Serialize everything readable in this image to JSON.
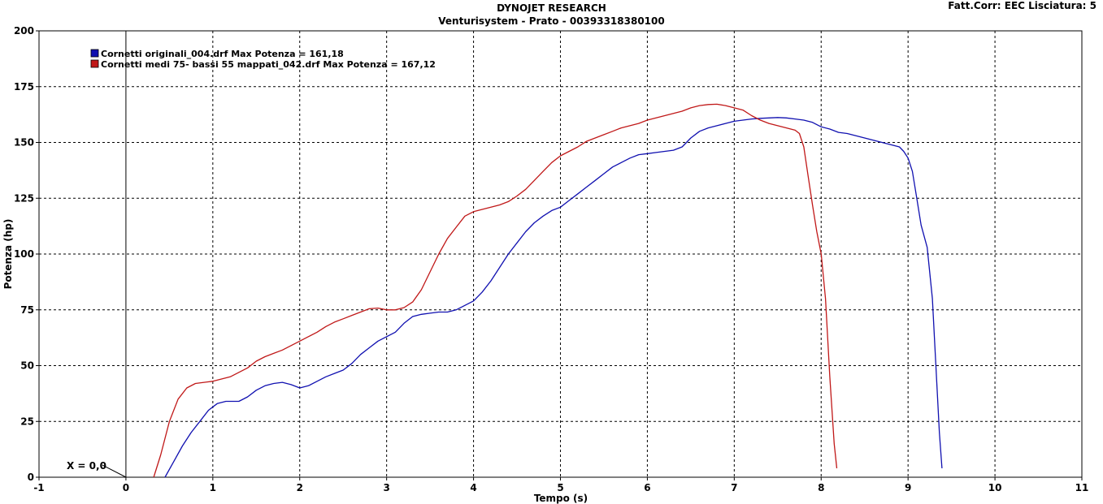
{
  "header": {
    "title": "DYNOJET RESEARCH",
    "subtitle": "Venturisystem - Prato - 00393318380100",
    "correction": "Fatt.Corr: EEC  Lisciatura: 5"
  },
  "marker_label": "X = 0,0",
  "colors": {
    "series_blue": "#1010b0",
    "series_red": "#c01818",
    "grid": "#000000"
  },
  "chart_data": {
    "type": "line",
    "xlabel": "Tempo (s)",
    "ylabel": "Potenza (hp)",
    "xlim": [
      -1,
      11
    ],
    "ylim": [
      0,
      200
    ],
    "x_ticks": [
      "-1",
      "0",
      "1",
      "2",
      "3",
      "4",
      "5",
      "6",
      "7",
      "8",
      "9",
      "10",
      "11"
    ],
    "y_ticks": [
      "0",
      "25",
      "50",
      "75",
      "100",
      "125",
      "150",
      "175",
      "200"
    ],
    "grid": true,
    "legend_position": "top-left",
    "series": [
      {
        "name": "Cornetti originali_004.drf Max Potenza = 161,18",
        "color": "#1010b0",
        "points": [
          [
            0.45,
            0
          ],
          [
            0.55,
            7
          ],
          [
            0.65,
            14
          ],
          [
            0.75,
            20
          ],
          [
            0.85,
            25
          ],
          [
            0.95,
            30
          ],
          [
            1.05,
            33
          ],
          [
            1.15,
            34
          ],
          [
            1.3,
            34
          ],
          [
            1.4,
            36
          ],
          [
            1.5,
            39
          ],
          [
            1.6,
            41
          ],
          [
            1.7,
            42
          ],
          [
            1.8,
            42.5
          ],
          [
            1.9,
            41.5
          ],
          [
            2.0,
            40
          ],
          [
            2.1,
            41
          ],
          [
            2.2,
            43
          ],
          [
            2.3,
            45
          ],
          [
            2.4,
            46.5
          ],
          [
            2.5,
            48
          ],
          [
            2.6,
            51
          ],
          [
            2.7,
            55
          ],
          [
            2.8,
            58
          ],
          [
            2.9,
            61
          ],
          [
            3.0,
            63
          ],
          [
            3.1,
            65
          ],
          [
            3.2,
            69
          ],
          [
            3.3,
            72
          ],
          [
            3.4,
            73
          ],
          [
            3.5,
            73.5
          ],
          [
            3.6,
            74
          ],
          [
            3.7,
            74
          ],
          [
            3.8,
            75
          ],
          [
            3.9,
            77
          ],
          [
            4.0,
            79
          ],
          [
            4.1,
            83
          ],
          [
            4.2,
            88
          ],
          [
            4.3,
            94
          ],
          [
            4.4,
            100
          ],
          [
            4.5,
            105
          ],
          [
            4.6,
            110
          ],
          [
            4.7,
            114
          ],
          [
            4.8,
            117
          ],
          [
            4.9,
            119.5
          ],
          [
            5.0,
            121
          ],
          [
            5.1,
            124
          ],
          [
            5.2,
            127
          ],
          [
            5.3,
            130
          ],
          [
            5.4,
            133
          ],
          [
            5.5,
            136
          ],
          [
            5.6,
            139
          ],
          [
            5.7,
            141
          ],
          [
            5.8,
            143
          ],
          [
            5.9,
            144.5
          ],
          [
            6.0,
            145
          ],
          [
            6.1,
            145.5
          ],
          [
            6.2,
            146
          ],
          [
            6.3,
            146.5
          ],
          [
            6.4,
            148
          ],
          [
            6.5,
            152
          ],
          [
            6.6,
            155
          ],
          [
            6.7,
            156.5
          ],
          [
            6.8,
            157.5
          ],
          [
            6.9,
            158.5
          ],
          [
            7.0,
            159.5
          ],
          [
            7.1,
            160
          ],
          [
            7.2,
            160.5
          ],
          [
            7.3,
            160.8
          ],
          [
            7.4,
            161
          ],
          [
            7.5,
            161.18
          ],
          [
            7.6,
            161
          ],
          [
            7.7,
            160.5
          ],
          [
            7.8,
            160
          ],
          [
            7.9,
            159
          ],
          [
            8.0,
            157
          ],
          [
            8.1,
            156
          ],
          [
            8.2,
            154.5
          ],
          [
            8.3,
            154
          ],
          [
            8.4,
            153
          ],
          [
            8.5,
            152
          ],
          [
            8.6,
            151
          ],
          [
            8.7,
            150
          ],
          [
            8.8,
            149
          ],
          [
            8.9,
            148
          ],
          [
            8.95,
            146
          ],
          [
            9.0,
            143
          ],
          [
            9.05,
            137
          ],
          [
            9.1,
            125
          ],
          [
            9.15,
            113
          ],
          [
            9.22,
            103
          ],
          [
            9.28,
            80
          ],
          [
            9.32,
            50
          ],
          [
            9.36,
            20
          ],
          [
            9.39,
            4
          ]
        ]
      },
      {
        "name": "Cornetti medi 75- bassi 55 mappati_042.drf Max Potenza = 167,12",
        "color": "#c01818",
        "points": [
          [
            0.32,
            0
          ],
          [
            0.4,
            10
          ],
          [
            0.5,
            25
          ],
          [
            0.6,
            35
          ],
          [
            0.7,
            40
          ],
          [
            0.8,
            42
          ],
          [
            0.9,
            42.5
          ],
          [
            1.0,
            43
          ],
          [
            1.1,
            44
          ],
          [
            1.2,
            45
          ],
          [
            1.3,
            47
          ],
          [
            1.4,
            49
          ],
          [
            1.5,
            52
          ],
          [
            1.6,
            54
          ],
          [
            1.7,
            55.5
          ],
          [
            1.8,
            57
          ],
          [
            1.9,
            59
          ],
          [
            2.0,
            61
          ],
          [
            2.1,
            63
          ],
          [
            2.2,
            65
          ],
          [
            2.3,
            67.5
          ],
          [
            2.4,
            69.5
          ],
          [
            2.5,
            71
          ],
          [
            2.6,
            72.5
          ],
          [
            2.7,
            74
          ],
          [
            2.8,
            75.5
          ],
          [
            2.9,
            75.8
          ],
          [
            3.0,
            75
          ],
          [
            3.1,
            75
          ],
          [
            3.2,
            76
          ],
          [
            3.3,
            78.5
          ],
          [
            3.4,
            84
          ],
          [
            3.5,
            92
          ],
          [
            3.6,
            100
          ],
          [
            3.7,
            107
          ],
          [
            3.8,
            112
          ],
          [
            3.9,
            117
          ],
          [
            4.0,
            119
          ],
          [
            4.1,
            120
          ],
          [
            4.2,
            121
          ],
          [
            4.3,
            122
          ],
          [
            4.4,
            123.5
          ],
          [
            4.5,
            126
          ],
          [
            4.6,
            129
          ],
          [
            4.7,
            133
          ],
          [
            4.8,
            137
          ],
          [
            4.9,
            141
          ],
          [
            5.0,
            144
          ],
          [
            5.1,
            146
          ],
          [
            5.2,
            148
          ],
          [
            5.3,
            150.5
          ],
          [
            5.4,
            152
          ],
          [
            5.5,
            153.5
          ],
          [
            5.6,
            155
          ],
          [
            5.7,
            156.5
          ],
          [
            5.8,
            157.5
          ],
          [
            5.9,
            158.5
          ],
          [
            6.0,
            160
          ],
          [
            6.1,
            161
          ],
          [
            6.2,
            162
          ],
          [
            6.3,
            163
          ],
          [
            6.4,
            164
          ],
          [
            6.5,
            165.5
          ],
          [
            6.6,
            166.5
          ],
          [
            6.7,
            167
          ],
          [
            6.8,
            167.12
          ],
          [
            6.9,
            166.5
          ],
          [
            7.0,
            165.5
          ],
          [
            7.1,
            164.5
          ],
          [
            7.2,
            162
          ],
          [
            7.3,
            160
          ],
          [
            7.4,
            158.5
          ],
          [
            7.5,
            157.5
          ],
          [
            7.6,
            156.5
          ],
          [
            7.7,
            155.5
          ],
          [
            7.75,
            154
          ],
          [
            7.8,
            148
          ],
          [
            7.85,
            135
          ],
          [
            7.9,
            122
          ],
          [
            7.95,
            110
          ],
          [
            8.0,
            100
          ],
          [
            8.05,
            80
          ],
          [
            8.1,
            45
          ],
          [
            8.15,
            15
          ],
          [
            8.18,
            4
          ]
        ]
      }
    ]
  }
}
